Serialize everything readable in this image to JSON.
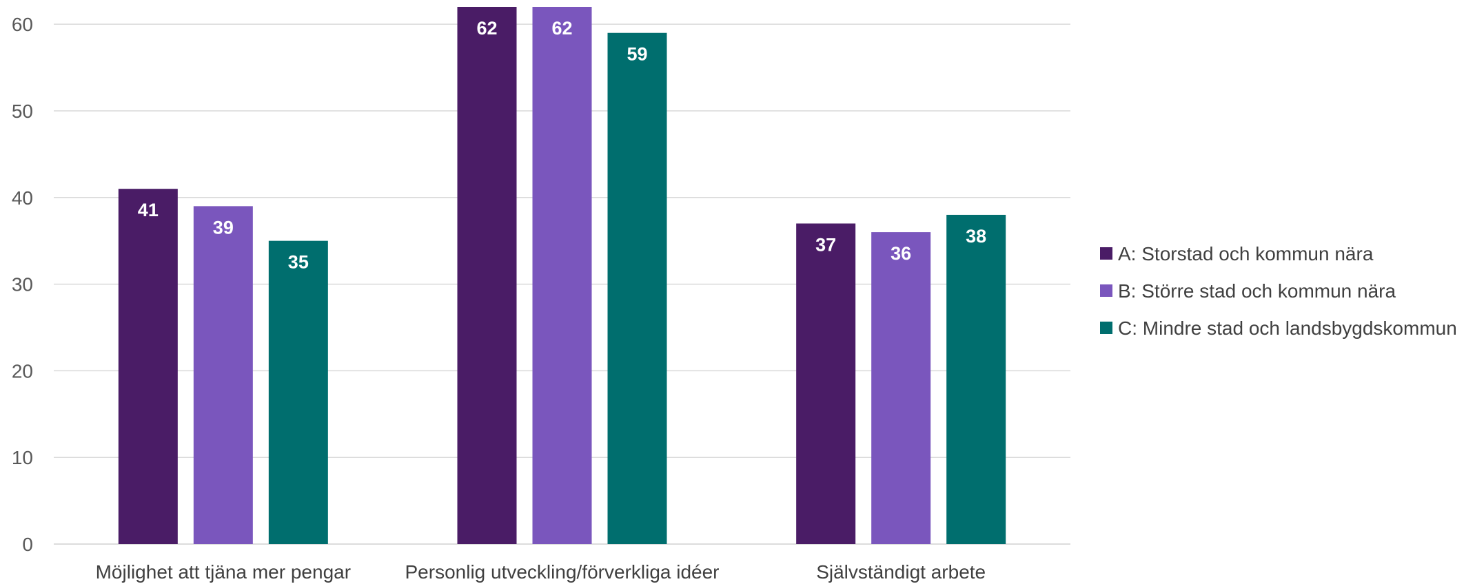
{
  "chart_data": {
    "type": "bar",
    "title": "",
    "xlabel": "",
    "ylabel": "",
    "categories": [
      "Möjlighet att tjäna mer pengar",
      "Personlig utveckling/förverkliga idéer",
      "Självständigt arbete"
    ],
    "series": [
      {
        "name": "A: Storstad och kommun nära",
        "color": "#4a1c66",
        "values": [
          41,
          62,
          37
        ]
      },
      {
        "name": "B: Större stad och kommun nära",
        "color": "#7a56bd",
        "values": [
          39,
          62,
          36
        ]
      },
      {
        "name": "C: Mindre stad och landsbygdskommun",
        "color": "#006e6e",
        "values": [
          35,
          59,
          38
        ]
      }
    ],
    "ylim": [
      0,
      62
    ],
    "yticks": [
      0,
      10,
      20,
      30,
      40,
      50,
      60
    ],
    "grid": true,
    "legend_position": "right",
    "data_labels": true
  }
}
